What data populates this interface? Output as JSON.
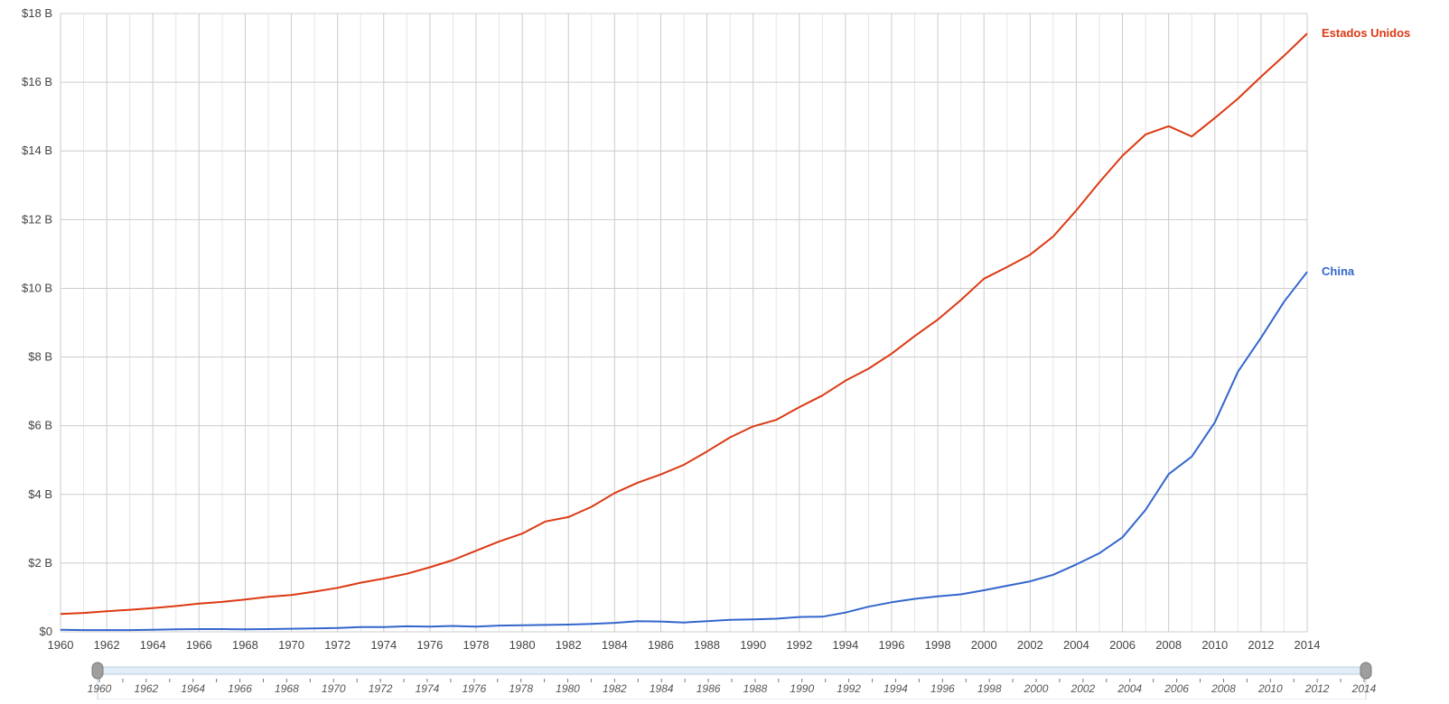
{
  "chart_data": {
    "type": "line",
    "title": "",
    "xlabel": "",
    "ylabel": "",
    "xlim": [
      1960,
      2014
    ],
    "ylim": [
      0,
      18
    ],
    "grid": true,
    "legend": "inline-right",
    "y_ticks": [
      {
        "value": 0,
        "label": "$0"
      },
      {
        "value": 2,
        "label": "$2 B"
      },
      {
        "value": 4,
        "label": "$4 B"
      },
      {
        "value": 6,
        "label": "$6 B"
      },
      {
        "value": 8,
        "label": "$8 B"
      },
      {
        "value": 10,
        "label": "$10 B"
      },
      {
        "value": 12,
        "label": "$12 B"
      },
      {
        "value": 14,
        "label": "$14 B"
      },
      {
        "value": 16,
        "label": "$16 B"
      },
      {
        "value": 18,
        "label": "$18 B"
      }
    ],
    "x_ticks": [
      "1960",
      "1962",
      "1964",
      "1966",
      "1968",
      "1970",
      "1972",
      "1974",
      "1976",
      "1978",
      "1980",
      "1982",
      "1984",
      "1986",
      "1988",
      "1990",
      "1992",
      "1994",
      "1996",
      "1998",
      "2000",
      "2002",
      "2004",
      "2006",
      "2008",
      "2010",
      "2012",
      "2014"
    ],
    "x": [
      1960,
      1961,
      1962,
      1963,
      1964,
      1965,
      1966,
      1967,
      1968,
      1969,
      1970,
      1971,
      1972,
      1973,
      1974,
      1975,
      1976,
      1977,
      1978,
      1979,
      1980,
      1981,
      1982,
      1983,
      1984,
      1985,
      1986,
      1987,
      1988,
      1989,
      1990,
      1991,
      1992,
      1993,
      1994,
      1995,
      1996,
      1997,
      1998,
      1999,
      2000,
      2001,
      2002,
      2003,
      2004,
      2005,
      2006,
      2007,
      2008,
      2009,
      2010,
      2011,
      2012,
      2013,
      2014
    ],
    "series": [
      {
        "name": "Estados Unidos",
        "color": "#dc3912",
        "values": [
          0.52,
          0.55,
          0.6,
          0.64,
          0.69,
          0.75,
          0.82,
          0.87,
          0.94,
          1.02,
          1.07,
          1.17,
          1.28,
          1.43,
          1.55,
          1.69,
          1.88,
          2.09,
          2.36,
          2.63,
          2.86,
          3.21,
          3.34,
          3.64,
          4.04,
          4.34,
          4.58,
          4.86,
          5.25,
          5.66,
          5.98,
          6.17,
          6.54,
          6.88,
          7.31,
          7.66,
          8.1,
          8.61,
          9.09,
          9.66,
          10.28,
          10.62,
          10.98,
          11.51,
          12.27,
          13.09,
          13.86,
          14.48,
          14.72,
          14.42,
          14.96,
          15.52,
          16.16,
          16.77,
          17.42
        ]
      },
      {
        "name": "China",
        "color": "#3366cc",
        "values": [
          0.06,
          0.05,
          0.05,
          0.05,
          0.06,
          0.07,
          0.08,
          0.08,
          0.07,
          0.08,
          0.09,
          0.1,
          0.11,
          0.14,
          0.14,
          0.16,
          0.15,
          0.17,
          0.15,
          0.18,
          0.19,
          0.2,
          0.21,
          0.23,
          0.26,
          0.31,
          0.3,
          0.27,
          0.31,
          0.35,
          0.36,
          0.38,
          0.43,
          0.44,
          0.56,
          0.73,
          0.86,
          0.96,
          1.03,
          1.09,
          1.21,
          1.34,
          1.47,
          1.66,
          1.96,
          2.29,
          2.75,
          3.55,
          4.59,
          5.1,
          6.1,
          7.57,
          8.56,
          9.61,
          10.48
        ]
      }
    ],
    "range_selector": {
      "start": 1960,
      "end": 2014,
      "ticks": [
        "1960",
        "1962",
        "1964",
        "1966",
        "1968",
        "1970",
        "1972",
        "1974",
        "1976",
        "1978",
        "1980",
        "1982",
        "1984",
        "1986",
        "1988",
        "1990",
        "1992",
        "1994",
        "1996",
        "1998",
        "2000",
        "2002",
        "2004",
        "2006",
        "2008",
        "2010",
        "2012",
        "2014"
      ]
    }
  }
}
